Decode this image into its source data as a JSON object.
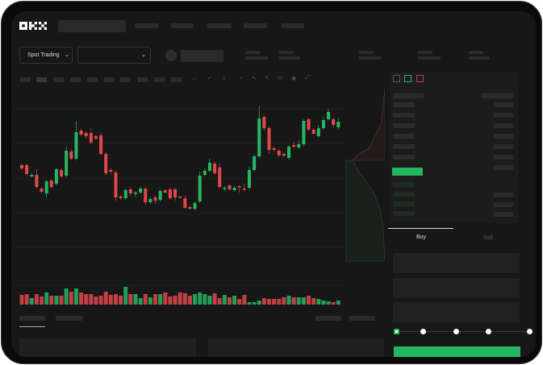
{
  "header": {
    "logo": "OKX",
    "market_selector": "Spot Trading",
    "pair_selector_value": ""
  },
  "order_form": {
    "tabs": [
      {
        "label": "Buy",
        "active": true
      },
      {
        "label": "Sell",
        "active": false
      }
    ],
    "slider_percent": 0,
    "slider_stops": 5
  },
  "colors": {
    "up": "#26b661",
    "down": "#e0474b",
    "background": "#171717",
    "accent": "#26b661"
  },
  "chart_data": {
    "type": "candlestick",
    "candles": [
      [
        57,
        53,
        59,
        51
      ],
      [
        57,
        46,
        59,
        44
      ],
      [
        43,
        45,
        47,
        42
      ],
      [
        45,
        30,
        52,
        28
      ],
      [
        28,
        24,
        30,
        22
      ],
      [
        22,
        37,
        39,
        17
      ],
      [
        38,
        30,
        40,
        28
      ],
      [
        34,
        52,
        54,
        32
      ],
      [
        51,
        43,
        53,
        41
      ],
      [
        44,
        75,
        80,
        42
      ],
      [
        74,
        65,
        77,
        63
      ],
      [
        65,
        98,
        112,
        63
      ],
      [
        100,
        95,
        102,
        93
      ],
      [
        97,
        93,
        99,
        90
      ],
      [
        97,
        85,
        102,
        83
      ],
      [
        93,
        90,
        95,
        88
      ],
      [
        94,
        71,
        97,
        69
      ],
      [
        71,
        47,
        73,
        45
      ],
      [
        51,
        49,
        53,
        45
      ],
      [
        48,
        17,
        50,
        13
      ],
      [
        18,
        16,
        20,
        14
      ],
      [
        16,
        26,
        28,
        14
      ],
      [
        27,
        22,
        30,
        19
      ],
      [
        22,
        23,
        25,
        17
      ],
      [
        23,
        28,
        31,
        21
      ],
      [
        28,
        11,
        30,
        8
      ],
      [
        11,
        15,
        17,
        9
      ],
      [
        17,
        13,
        19,
        9
      ],
      [
        14,
        25,
        27,
        12
      ],
      [
        26,
        23,
        27,
        22
      ],
      [
        27,
        16,
        29,
        14
      ],
      [
        27,
        17,
        29,
        13
      ],
      [
        18,
        17,
        19,
        16
      ],
      [
        16,
        4,
        19,
        3
      ],
      [
        5,
        3,
        7,
        2
      ],
      [
        3,
        10,
        12,
        1
      ],
      [
        12,
        44,
        49,
        10
      ],
      [
        45,
        50,
        53,
        43
      ],
      [
        50,
        60,
        65,
        48
      ],
      [
        59,
        47,
        61,
        45
      ],
      [
        54,
        30,
        60,
        28
      ],
      [
        28,
        29,
        31,
        25
      ],
      [
        32,
        27,
        33,
        25
      ],
      [
        26,
        29,
        31,
        24
      ],
      [
        31,
        30,
        32,
        23
      ],
      [
        28,
        27,
        34,
        25
      ],
      [
        29,
        51,
        55,
        27
      ],
      [
        51,
        68,
        70,
        49
      ],
      [
        68,
        115,
        131,
        66
      ],
      [
        117,
        103,
        119,
        100
      ],
      [
        103,
        76,
        105,
        72
      ],
      [
        78,
        76,
        80,
        74
      ],
      [
        75,
        69,
        77,
        67
      ],
      [
        71,
        69,
        73,
        67
      ],
      [
        66,
        80,
        82,
        64
      ],
      [
        82,
        80,
        86,
        78
      ],
      [
        79,
        83,
        88,
        77
      ],
      [
        83,
        112,
        114,
        81
      ],
      [
        114,
        101,
        116,
        99
      ],
      [
        101,
        96,
        103,
        95
      ],
      [
        93,
        103,
        107,
        91
      ],
      [
        103,
        113,
        117,
        101
      ],
      [
        114,
        123,
        127,
        112
      ],
      [
        114,
        107,
        116,
        103
      ],
      [
        104,
        111,
        116,
        102
      ]
    ],
    "volume": [
      12,
      13,
      8,
      13,
      10,
      15,
      11,
      11,
      11,
      20,
      16,
      20,
      15,
      13,
      13,
      10,
      11,
      16,
      12,
      13,
      11,
      22,
      13,
      13,
      8,
      13,
      9,
      13,
      13,
      15,
      10,
      11,
      15,
      14,
      11,
      13,
      15,
      13,
      11,
      14,
      8,
      12,
      9,
      11,
      7,
      12,
      3,
      3,
      5,
      8,
      7,
      7,
      7,
      9,
      11,
      9,
      9,
      9,
      11,
      8,
      7,
      5,
      4,
      3,
      5
    ],
    "grid": true
  }
}
